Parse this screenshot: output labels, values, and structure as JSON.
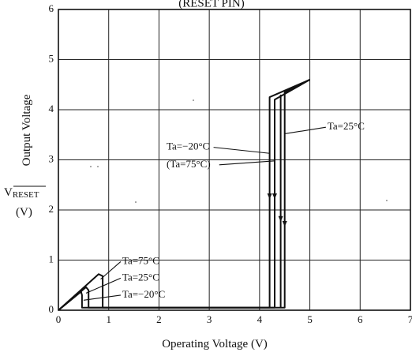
{
  "chart_data": {
    "type": "line",
    "title": "(RESET PIN)",
    "xlabel": "Operating Voltage (V)",
    "ylabel": "Output Voltage",
    "ylabel_symbol": "V",
    "ylabel_symbol_sub": "RESET",
    "ylabel_unit": "(V)",
    "xlim": [
      0,
      7
    ],
    "ylim": [
      0,
      6
    ],
    "x_ticks": [
      "0",
      "1",
      "2",
      "3",
      "4",
      "5",
      "6",
      "7"
    ],
    "y_ticks": [
      "0",
      "1",
      "2",
      "3",
      "4",
      "5",
      "6"
    ],
    "grid": true,
    "series": [
      {
        "name": "Ta=75°C",
        "points": [
          [
            0,
            0
          ],
          [
            0.8,
            0.72
          ],
          [
            0.88,
            0.68
          ],
          [
            0.88,
            0.05
          ],
          [
            4.3,
            0.05
          ],
          [
            4.3,
            4.2
          ],
          [
            5.0,
            4.6
          ]
        ]
      },
      {
        "name": "Ta=25°C",
        "points": [
          [
            0,
            0
          ],
          [
            0.55,
            0.46
          ],
          [
            0.6,
            0.4
          ],
          [
            0.6,
            0.05
          ],
          [
            4.5,
            0.05
          ],
          [
            4.5,
            4.35
          ],
          [
            5.0,
            4.6
          ]
        ]
      },
      {
        "name": "Ta=−20°C",
        "points": [
          [
            0,
            0
          ],
          [
            0.45,
            0.37
          ],
          [
            0.47,
            0.3
          ],
          [
            0.47,
            0.05
          ],
          [
            4.2,
            0.05
          ],
          [
            4.2,
            4.25
          ],
          [
            5.0,
            4.6
          ]
        ]
      },
      {
        "name": "Ta=−20°C",
        "points": [
          [
            4.42,
            0.05
          ],
          [
            4.42,
            4.3
          ]
        ]
      }
    ],
    "annotations": [
      {
        "text": "Ta=75°C",
        "tx": 1.27,
        "ty": 0.97,
        "ax": 0.84,
        "ay": 0.62
      },
      {
        "text": "Ta=25°C",
        "tx": 1.27,
        "ty": 0.64,
        "ax": 0.55,
        "ay": 0.34
      },
      {
        "text": "Ta=−20°C",
        "tx": 1.27,
        "ty": 0.3,
        "ax": 0.5,
        "ay": 0.2
      },
      {
        "text": "Ta=−20°C",
        "tx": 2.15,
        "ty": 3.25,
        "ax": 4.2,
        "ay": 3.13
      },
      {
        "text": "(Ta=75°C)",
        "tx": 2.15,
        "ty": 2.9,
        "ax": 4.3,
        "ay": 2.98
      },
      {
        "text": "Ta=25°C",
        "tx": 5.35,
        "ty": 3.65,
        "ax": 4.5,
        "ay": 3.52
      }
    ],
    "arrows": [
      {
        "x": 4.2,
        "y": 2.25
      },
      {
        "x": 4.3,
        "y": 2.25
      },
      {
        "x": 4.42,
        "y": 1.8
      },
      {
        "x": 4.5,
        "y": 1.7
      }
    ]
  }
}
